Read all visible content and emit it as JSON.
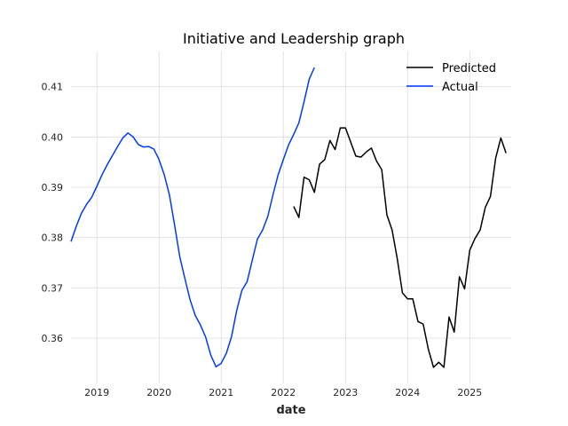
{
  "chart_data": {
    "type": "line",
    "title": "Initiative and Leadership graph",
    "xlabel": "date",
    "ylabel": "",
    "x_ticks": [
      "2019",
      "2020",
      "2021",
      "2022",
      "2023",
      "2024",
      "2025"
    ],
    "y_ticks": [
      "0.36",
      "0.37",
      "0.38",
      "0.39",
      "0.40",
      "0.41"
    ],
    "xlim": [
      "2018-08",
      "2025-09"
    ],
    "ylim": [
      0.351,
      0.417
    ],
    "grid": true,
    "legend_position": "top-right",
    "series": [
      {
        "name": "Predicted",
        "color": "#000000",
        "points": [
          [
            "2022-03",
            0.3862
          ],
          [
            "2022-04",
            0.384
          ],
          [
            "2022-05",
            0.392
          ],
          [
            "2022-06",
            0.3915
          ],
          [
            "2022-07",
            0.389
          ],
          [
            "2022-08",
            0.3946
          ],
          [
            "2022-09",
            0.3955
          ],
          [
            "2022-10",
            0.3993
          ],
          [
            "2022-11",
            0.3975
          ],
          [
            "2022-12",
            0.4018
          ],
          [
            "2023-01",
            0.4018
          ],
          [
            "2023-02",
            0.399
          ],
          [
            "2023-03",
            0.3962
          ],
          [
            "2023-04",
            0.396
          ],
          [
            "2023-05",
            0.397
          ],
          [
            "2023-06",
            0.3978
          ],
          [
            "2023-07",
            0.3952
          ],
          [
            "2023-08",
            0.3935
          ],
          [
            "2023-09",
            0.3845
          ],
          [
            "2023-10",
            0.3815
          ],
          [
            "2023-11",
            0.3758
          ],
          [
            "2023-12",
            0.369
          ],
          [
            "2024-01",
            0.3678
          ],
          [
            "2024-02",
            0.3678
          ],
          [
            "2024-03",
            0.3633
          ],
          [
            "2024-04",
            0.3628
          ],
          [
            "2024-05",
            0.3578
          ],
          [
            "2024-06",
            0.3542
          ],
          [
            "2024-07",
            0.3552
          ],
          [
            "2024-08",
            0.3542
          ],
          [
            "2024-09",
            0.3642
          ],
          [
            "2024-10",
            0.3612
          ],
          [
            "2024-11",
            0.3722
          ],
          [
            "2024-12",
            0.3698
          ],
          [
            "2025-01",
            0.3775
          ],
          [
            "2025-02",
            0.3798
          ],
          [
            "2025-03",
            0.3815
          ],
          [
            "2025-04",
            0.386
          ],
          [
            "2025-05",
            0.3882
          ],
          [
            "2025-06",
            0.3958
          ],
          [
            "2025-07",
            0.3998
          ],
          [
            "2025-08",
            0.3968
          ]
        ]
      },
      {
        "name": "Actual",
        "color": "#0039ff",
        "points": [
          [
            "2018-08",
            0.3792
          ],
          [
            "2018-09",
            0.3822
          ],
          [
            "2018-10",
            0.3848
          ],
          [
            "2018-11",
            0.3866
          ],
          [
            "2018-12",
            0.388
          ],
          [
            "2019-01",
            0.3902
          ],
          [
            "2019-02",
            0.3925
          ],
          [
            "2019-03",
            0.3945
          ],
          [
            "2019-04",
            0.3963
          ],
          [
            "2019-05",
            0.3981
          ],
          [
            "2019-06",
            0.3998
          ],
          [
            "2019-07",
            0.4008
          ],
          [
            "2019-08",
            0.4
          ],
          [
            "2019-09",
            0.3985
          ],
          [
            "2019-10",
            0.398
          ],
          [
            "2019-11",
            0.3981
          ],
          [
            "2019-12",
            0.3976
          ],
          [
            "2020-01",
            0.3955
          ],
          [
            "2020-02",
            0.3925
          ],
          [
            "2020-03",
            0.3885
          ],
          [
            "2020-04",
            0.3825
          ],
          [
            "2020-05",
            0.3762
          ],
          [
            "2020-06",
            0.3718
          ],
          [
            "2020-07",
            0.3676
          ],
          [
            "2020-08",
            0.3645
          ],
          [
            "2020-09",
            0.3626
          ],
          [
            "2020-10",
            0.3602
          ],
          [
            "2020-11",
            0.3566
          ],
          [
            "2020-12",
            0.3543
          ],
          [
            "2021-01",
            0.355
          ],
          [
            "2021-02",
            0.357
          ],
          [
            "2021-03",
            0.3603
          ],
          [
            "2021-04",
            0.3655
          ],
          [
            "2021-05",
            0.3695
          ],
          [
            "2021-06",
            0.3712
          ],
          [
            "2021-07",
            0.3755
          ],
          [
            "2021-08",
            0.3797
          ],
          [
            "2021-09",
            0.3815
          ],
          [
            "2021-10",
            0.3842
          ],
          [
            "2021-11",
            0.3885
          ],
          [
            "2021-12",
            0.3925
          ],
          [
            "2022-01",
            0.3955
          ],
          [
            "2022-02",
            0.3984
          ],
          [
            "2022-03",
            0.4005
          ],
          [
            "2022-04",
            0.4028
          ],
          [
            "2022-05",
            0.407
          ],
          [
            "2022-06",
            0.4115
          ],
          [
            "2022-07",
            0.4138
          ]
        ]
      }
    ]
  }
}
